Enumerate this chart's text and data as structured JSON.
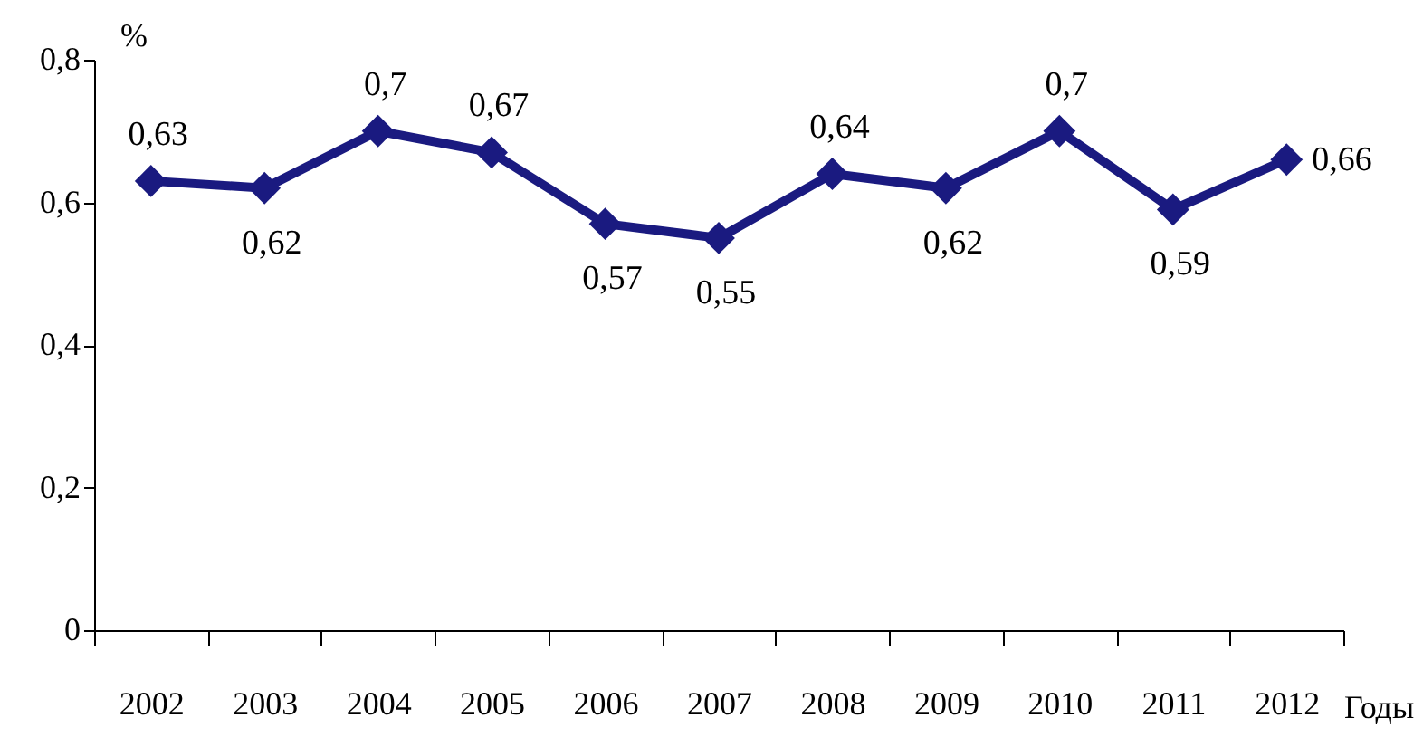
{
  "chart_data": {
    "type": "line",
    "xlabel": "Годы",
    "ylabel": "%",
    "categories": [
      "2002",
      "2003",
      "2004",
      "2005",
      "2006",
      "2007",
      "2008",
      "2009",
      "2010",
      "2011",
      "2012"
    ],
    "series": [
      {
        "color": "#1a1a80",
        "values": [
          0.63,
          0.62,
          0.7,
          0.67,
          0.57,
          0.55,
          0.64,
          0.62,
          0.7,
          0.59,
          0.66
        ],
        "value_labels": [
          "0,63",
          "0,62",
          "0,7",
          "0,67",
          "0,57",
          "0,55",
          "0,64",
          "0,62",
          "0,7",
          "0,59",
          "0,66"
        ]
      }
    ],
    "ylim": [
      0,
      0.8
    ],
    "yticks": [
      {
        "value": 0,
        "label": "0"
      },
      {
        "value": 0.2,
        "label": "0,2"
      },
      {
        "value": 0.4,
        "label": "0,4"
      },
      {
        "value": 0.6,
        "label": "0,6"
      },
      {
        "value": 0.8,
        "label": "0,8"
      }
    ],
    "grid": false,
    "marker": "diamond",
    "line_style": "solid"
  }
}
